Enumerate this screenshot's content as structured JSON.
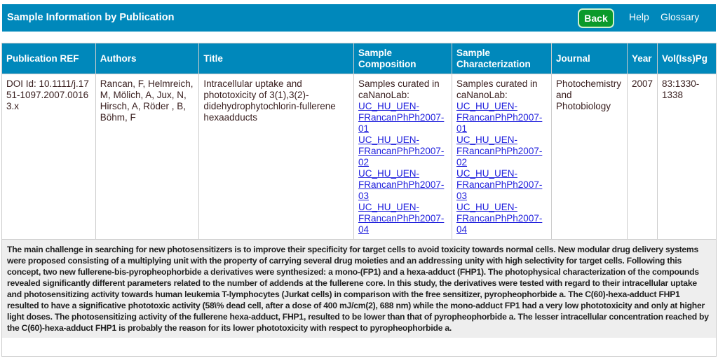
{
  "header": {
    "title": "Sample Information by Publication",
    "back_label": "Back",
    "help_label": "Help",
    "glossary_label": "Glossary"
  },
  "table": {
    "columns": [
      "Publication REF",
      "Authors",
      "Title",
      "Sample Composition",
      "Sample Characterization",
      "Journal",
      "Year",
      "Vol(Iss)Pg"
    ],
    "row": {
      "ref": "DOI Id: 10.1111/j.1751-1097.2007.00163.x",
      "authors": "Rancan, F, Helmreich, M, Mölich, A, Jux, N, Hirsch, A, Röder , B, Böhm, F",
      "title": "Intracellular uptake and phototoxicity of 3(1),3(2)-didehydrophytochlorin-fullerene hexaadducts",
      "composition_prefix": "Samples curated in caNanoLab:",
      "composition_links": [
        "UC_HU_UEN-FRancanPhPh2007-01",
        "UC_HU_UEN-FRancanPhPh2007-02",
        "UC_HU_UEN-FRancanPhPh2007-03",
        "UC_HU_UEN-FRancanPhPh2007-04"
      ],
      "characterization_prefix": "Samples curated in caNanoLab:",
      "characterization_links": [
        "UC_HU_UEN-FRancanPhPh2007-01",
        "UC_HU_UEN-FRancanPhPh2007-02",
        "UC_HU_UEN-FRancanPhPh2007-03",
        "UC_HU_UEN-FRancanPhPh2007-04"
      ],
      "journal": "Photochemistry and Photobiology",
      "year": "2007",
      "vol": "83:1330-1338"
    }
  },
  "abstract": "The main challenge in searching for new photosensitizers is to improve their specificity for target cells to avoid toxicity towards normal cells. New modular drug delivery systems were proposed consisting of a multiplying unit with the property of carrying several drug moieties and an addressing unity with high selectivity for target cells. Following this concept, two new fullerene-bis-pyropheophorbide a derivatives were synthesized: a mono-(FP1) and a hexa-adduct (FHP1). The photophysical characterization of the compounds revealed significantly different parameters related to the number of addends at the fullerene core. In this study, the derivatives were tested with regard to their intracellular uptake and photosensitizing activity towards human leukemia T-lymphocytes (Jurkat cells) in comparison with the free sensitizer, pyropheophorbide a. The C(60)-hexa-adduct FHP1 resulted to have  a significative phototoxic activity (58\\% dead cell, after a dose of 400 mJ/cm(2), 688 nm) while the mono-adduct FP1 had a very low phototoxicity and only at higher light doses. The photosensitizing activity of the fullerene hexa-adduct, FHP1, resulted to be lower than that of pyropheophorbide a. The lesser intracellular concentration reached by the C(60)-hexa-adduct FHP1 is probably the reason for its lower phototoxicity with respect to pyropheophorbide a."
}
